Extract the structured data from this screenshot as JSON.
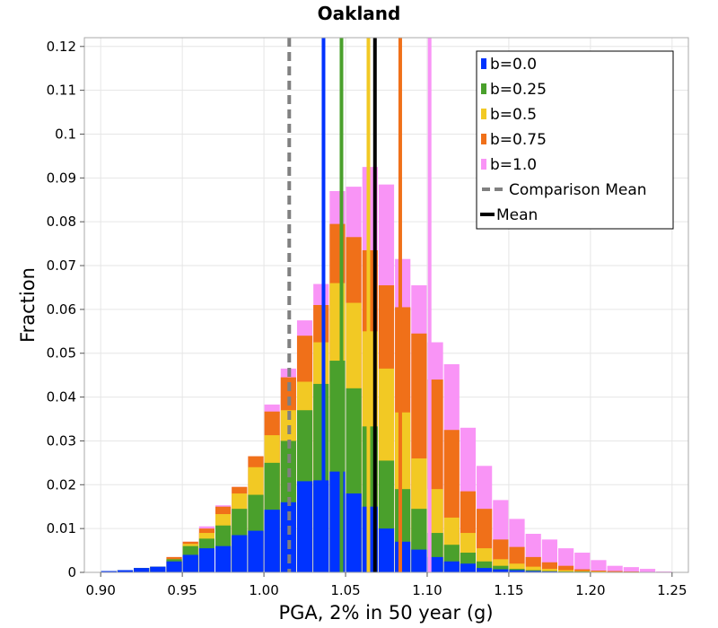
{
  "chart_data": {
    "type": "bar",
    "stacked": true,
    "title": "Oakland",
    "xlabel": "PGA, 2% in 50 year (g)",
    "ylabel": "Fraction",
    "xlim": [
      0.89,
      1.26
    ],
    "ylim": [
      0,
      0.122
    ],
    "xticks": [
      "0.90",
      "0.95",
      "1.00",
      "1.05",
      "1.10",
      "1.15",
      "1.20",
      "1.25"
    ],
    "yticks": [
      "0",
      "0.01",
      "0.02",
      "0.03",
      "0.04",
      "0.05",
      "0.06",
      "0.07",
      "0.08",
      "0.09",
      "0.1",
      "0.11",
      "0.12"
    ],
    "grid": true,
    "legend_position": "top-right",
    "bin_width": 0.01,
    "bin_centers": [
      0.895,
      0.905,
      0.915,
      0.925,
      0.935,
      0.945,
      0.955,
      0.965,
      0.975,
      0.985,
      0.995,
      1.005,
      1.015,
      1.025,
      1.035,
      1.045,
      1.055,
      1.065,
      1.075,
      1.085,
      1.095,
      1.105,
      1.115,
      1.125,
      1.135,
      1.145,
      1.155,
      1.165,
      1.175,
      1.185,
      1.195,
      1.205,
      1.215,
      1.225,
      1.235,
      1.245,
      1.255
    ],
    "series": [
      {
        "name": "b=0.0",
        "color": "#0033ff",
        "cumulative": [
          0.0,
          0.0003,
          0.0005,
          0.001,
          0.0013,
          0.0025,
          0.004,
          0.0055,
          0.006,
          0.0085,
          0.0095,
          0.0143,
          0.016,
          0.0208,
          0.021,
          0.023,
          0.018,
          0.015,
          0.01,
          0.007,
          0.0052,
          0.0035,
          0.0025,
          0.002,
          0.001,
          0.0007,
          0.0005,
          0.0003,
          0.0002,
          0.0001,
          0.0001,
          0.0001,
          0.0,
          0.0,
          0.0,
          0.0,
          0.0
        ]
      },
      {
        "name": "b=0.25",
        "color": "#4aa02c",
        "cumulative": [
          0.0,
          0.0003,
          0.0005,
          0.001,
          0.0013,
          0.003,
          0.006,
          0.0077,
          0.0107,
          0.0145,
          0.0177,
          0.025,
          0.03,
          0.037,
          0.043,
          0.0483,
          0.042,
          0.0333,
          0.0255,
          0.019,
          0.0145,
          0.009,
          0.0063,
          0.0045,
          0.0025,
          0.0015,
          0.0008,
          0.0005,
          0.0003,
          0.0002,
          0.0002,
          0.0001,
          0.0001,
          0.0,
          0.0,
          0.0,
          0.0
        ]
      },
      {
        "name": "b=0.5",
        "color": "#f2c924",
        "cumulative": [
          0.0,
          0.0003,
          0.0005,
          0.001,
          0.0013,
          0.003,
          0.0065,
          0.009,
          0.0133,
          0.018,
          0.024,
          0.0313,
          0.037,
          0.0435,
          0.0525,
          0.066,
          0.0615,
          0.055,
          0.0465,
          0.0365,
          0.026,
          0.019,
          0.0125,
          0.009,
          0.0055,
          0.003,
          0.002,
          0.0013,
          0.0008,
          0.0005,
          0.0003,
          0.0002,
          0.0001,
          0.0001,
          0.0,
          0.0,
          0.0
        ]
      },
      {
        "name": "b=0.75",
        "color": "#f07019",
        "cumulative": [
          0.0,
          0.0003,
          0.0005,
          0.001,
          0.0013,
          0.0035,
          0.007,
          0.01,
          0.015,
          0.0195,
          0.0265,
          0.0367,
          0.0445,
          0.054,
          0.061,
          0.0795,
          0.0765,
          0.0735,
          0.0655,
          0.0605,
          0.0545,
          0.044,
          0.0325,
          0.0185,
          0.0145,
          0.0075,
          0.0058,
          0.0035,
          0.0023,
          0.0015,
          0.0007,
          0.0004,
          0.0003,
          0.0002,
          0.0001,
          0.0,
          0.0
        ]
      },
      {
        "name": "b=1.0",
        "color": "#f994f6",
        "cumulative": [
          0.0,
          0.0003,
          0.0005,
          0.001,
          0.0013,
          0.0035,
          0.007,
          0.0105,
          0.0153,
          0.0195,
          0.0265,
          0.0383,
          0.0465,
          0.0575,
          0.0658,
          0.087,
          0.088,
          0.0925,
          0.0885,
          0.0715,
          0.0655,
          0.0525,
          0.0475,
          0.033,
          0.0243,
          0.0165,
          0.0122,
          0.0088,
          0.0075,
          0.0055,
          0.0045,
          0.0028,
          0.0015,
          0.0012,
          0.0008,
          0.0002,
          0.0
        ]
      }
    ],
    "vertical_lines": [
      {
        "series": "b=0.0",
        "x": 1.0365,
        "color": "#0033ff",
        "style": "solid"
      },
      {
        "series": "b=0.25",
        "x": 1.0475,
        "color": "#4aa02c",
        "style": "solid"
      },
      {
        "series": "b=0.5",
        "x": 1.064,
        "color": "#f2c924",
        "style": "solid"
      },
      {
        "series": "b=0.75",
        "x": 1.0835,
        "color": "#f07019",
        "style": "solid"
      },
      {
        "series": "b=1.0",
        "x": 1.1015,
        "color": "#f994f6",
        "style": "solid"
      },
      {
        "series": "Comparison Mean",
        "x": 1.0155,
        "color": "#808080",
        "style": "dashed"
      },
      {
        "series": "Mean",
        "x": 1.068,
        "color": "#000000",
        "style": "solid"
      }
    ],
    "legend": [
      {
        "label": "b=0.0",
        "color": "#0033ff",
        "kind": "bar"
      },
      {
        "label": "b=0.25",
        "color": "#4aa02c",
        "kind": "bar"
      },
      {
        "label": "b=0.5",
        "color": "#f2c924",
        "kind": "bar"
      },
      {
        "label": "b=0.75",
        "color": "#f07019",
        "kind": "bar"
      },
      {
        "label": "b=1.0",
        "color": "#f994f6",
        "kind": "bar"
      },
      {
        "label": "Comparison Mean",
        "color": "#808080",
        "kind": "dashed-line"
      },
      {
        "label": "Mean",
        "color": "#000000",
        "kind": "line"
      }
    ]
  }
}
